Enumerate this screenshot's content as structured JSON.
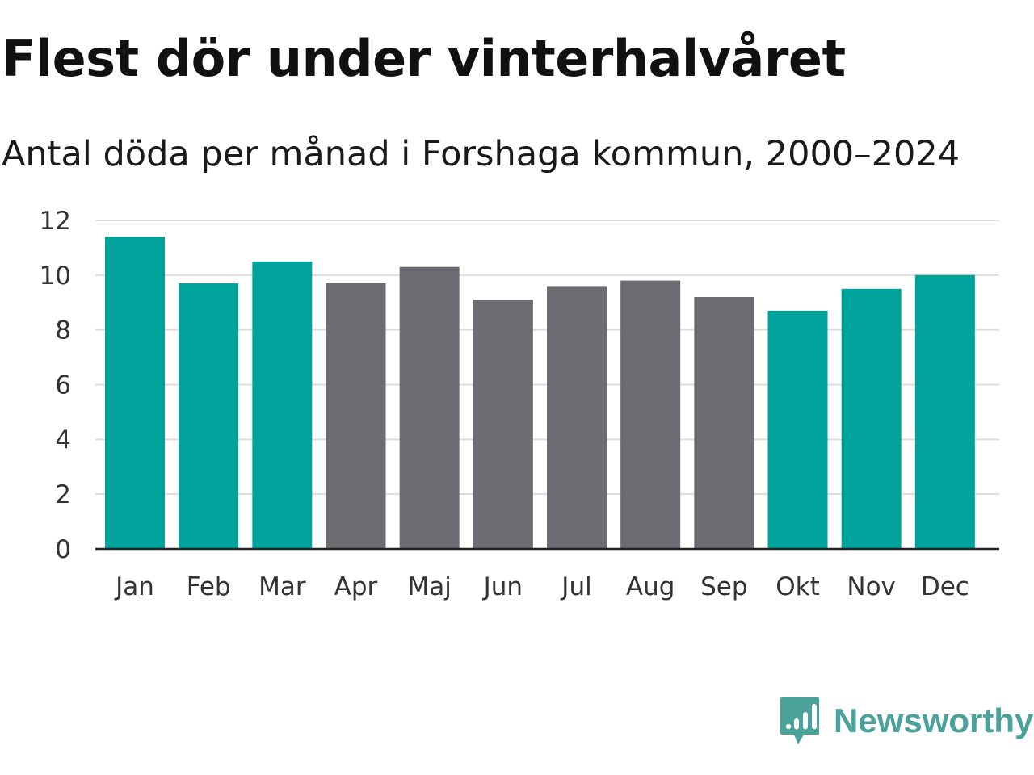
{
  "title": "Flest dör under vinterhalvåret",
  "subtitle": "Antal döda per månad i Forshaga kommun, 2000–2024",
  "brand": {
    "name": "Newsworthy"
  },
  "colors": {
    "winter": "#00a39b",
    "summer": "#6c6c72",
    "grid": "#dddddd",
    "axis": "#222222"
  },
  "chart_data": {
    "type": "bar",
    "title": "Flest dör under vinterhalvåret",
    "subtitle": "Antal döda per månad i Forshaga kommun, 2000–2024",
    "xlabel": "",
    "ylabel": "",
    "ylim": [
      0,
      12
    ],
    "yticks": [
      0,
      2,
      4,
      6,
      8,
      10,
      12
    ],
    "categories": [
      "Jan",
      "Feb",
      "Mar",
      "Apr",
      "Maj",
      "Jun",
      "Jul",
      "Aug",
      "Sep",
      "Okt",
      "Nov",
      "Dec"
    ],
    "values": [
      11.4,
      9.7,
      10.5,
      9.7,
      10.3,
      9.1,
      9.6,
      9.8,
      9.2,
      8.7,
      9.5,
      10.0
    ],
    "highlight": [
      true,
      true,
      true,
      false,
      false,
      false,
      false,
      false,
      false,
      true,
      true,
      true
    ],
    "grid": true,
    "legend": "none"
  }
}
